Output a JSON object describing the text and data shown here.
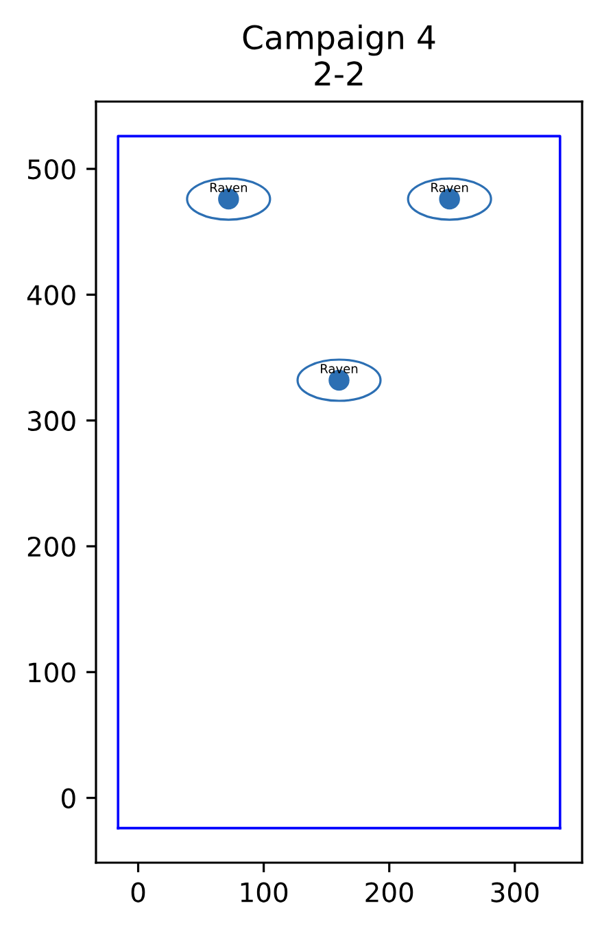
{
  "chart_data": {
    "type": "scatter",
    "title": "Campaign 4\n2-2",
    "xlim": [
      -33.6,
      353.6
    ],
    "ylim": [
      -51.5,
      553.5
    ],
    "xticks": [
      0,
      100,
      200,
      300
    ],
    "yticks": [
      0,
      100,
      200,
      300,
      400,
      500
    ],
    "grid": false,
    "legend": false,
    "marker": "circle",
    "series": [
      {
        "color": "#2c6fb3",
        "x": [
          72,
          248,
          160
        ],
        "values": [
          476,
          476,
          332
        ]
      },
      {
        "type": "line",
        "color": "#0000ff",
        "line_style": "solid",
        "marker": "none",
        "x": [
          -16,
          -16,
          336,
          336
        ],
        "values": [
          -24,
          526,
          526,
          -24
        ]
      },
      {
        "type": "line",
        "color": "#0000ff",
        "line_style": "solid",
        "marker": "none",
        "x": [
          -16,
          336
        ],
        "values": [
          -24,
          -24
        ]
      }
    ],
    "annotations": [
      {
        "text": "Raven",
        "x": 72,
        "y": 476
      },
      {
        "text": "Raven",
        "x": 248,
        "y": 476
      },
      {
        "text": "Raven",
        "x": 160,
        "y": 332
      }
    ]
  }
}
